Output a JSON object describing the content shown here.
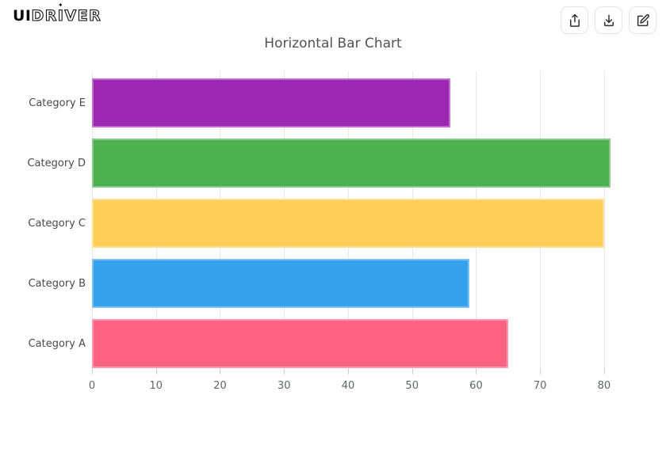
{
  "header": {
    "logo": {
      "bold": "UI",
      "rest_a": "DR",
      "rest_i": "I",
      "rest_b": "VER",
      "star": "✦"
    },
    "actions": [
      {
        "label": "share",
        "icon": "share-icon"
      },
      {
        "label": "download",
        "icon": "download-icon"
      },
      {
        "label": "edit",
        "icon": "edit-icon"
      }
    ]
  },
  "title": "Horizontal Bar Chart",
  "chart_data": {
    "type": "bar",
    "orientation": "horizontal",
    "title": "Horizontal Bar Chart",
    "categories": [
      "Category A",
      "Category B",
      "Category C",
      "Category D",
      "Category E"
    ],
    "values": [
      65,
      59,
      80,
      81,
      56
    ],
    "colors": [
      "#FF6384",
      "#36A2EB",
      "#FFCE56",
      "#4CAF50",
      "#9C27B0"
    ],
    "category_order_top_to_bottom": [
      "Category E",
      "Category D",
      "Category C",
      "Category B",
      "Category A"
    ],
    "xticks": [
      0,
      10,
      20,
      30,
      40,
      50,
      60,
      70,
      80
    ],
    "xlim": [
      0,
      86.2
    ],
    "xlabel": "",
    "ylabel": "",
    "grid": true,
    "legend": false
  },
  "style": {
    "grid_color": "#e7e7e7",
    "tick_color": "#5f6368",
    "label_color": "#49494c",
    "title_color": "#525252"
  }
}
